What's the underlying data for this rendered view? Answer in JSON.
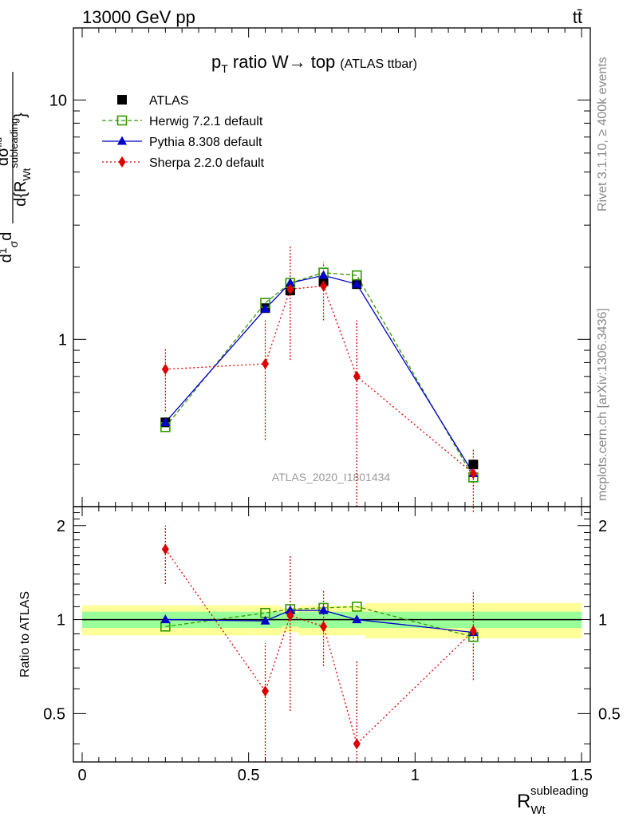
{
  "header": {
    "energy_label": "13000 GeV pp",
    "process_label": "tt̄"
  },
  "side_labels": {
    "rivet": "Rivet 3.1.10, ≥ 400k events",
    "mcplots": "mcplots.cern.ch [arXiv:1306.3436]"
  },
  "chart_data": {
    "type": "line",
    "title_main": "p",
    "title_sub": "T",
    "title_rest": " ratio W→ top",
    "title_tag": "(ATLAS ttbar)",
    "watermark": "ATLAS_2020_I1801434",
    "ylabel_main": "d¹σ / d{R_Wt^subleading} · 1/σ",
    "ylabel_ratio": "Ratio to ATLAS",
    "xlabel": "R",
    "xlabel_sup": "subleading",
    "xlabel_sub": "Wt",
    "xlim": [
      0,
      1.5
    ],
    "ylim_main": [
      0.2,
      20
    ],
    "yscale_main": "log",
    "ylim_ratio": [
      0.35,
      2.3
    ],
    "yscale_ratio": "log",
    "x_ticks": [
      "0",
      "0.5",
      "1",
      "1.5"
    ],
    "y_ticks_main": [
      "1",
      "10"
    ],
    "y_ticks_ratio": [
      "0.5",
      "1",
      "2"
    ],
    "bins": [
      {
        "lo": 0.0,
        "hi": 0.5
      },
      {
        "lo": 0.5,
        "hi": 0.6
      },
      {
        "lo": 0.6,
        "hi": 0.65
      },
      {
        "lo": 0.65,
        "hi": 0.8
      },
      {
        "lo": 0.8,
        "hi": 0.85
      },
      {
        "lo": 0.85,
        "hi": 1.5
      }
    ],
    "x": [
      0.25,
      0.55,
      0.625,
      0.725,
      0.825,
      1.175
    ],
    "data": {
      "name": "ATLAS",
      "values": [
        0.45,
        1.35,
        1.6,
        1.75,
        1.7,
        0.3
      ],
      "band_inner": [
        0.06,
        0.06,
        0.05,
        0.06,
        0.06,
        0.06
      ],
      "band_outer": [
        0.11,
        0.11,
        0.09,
        0.11,
        0.11,
        0.13
      ]
    },
    "series": [
      {
        "name": "Herwig 7.2.1 default",
        "color": "#339900",
        "marker": "open-square",
        "line": "dashed",
        "values": [
          0.43,
          1.42,
          1.72,
          1.9,
          1.85,
          0.265
        ],
        "ratio": [
          0.95,
          1.05,
          1.08,
          1.09,
          1.1,
          0.88
        ]
      },
      {
        "name": "Pythia 8.308 default",
        "color": "#0000cc",
        "marker": "triangle",
        "line": "solid",
        "values": [
          0.45,
          1.34,
          1.72,
          1.85,
          1.7,
          0.275
        ],
        "ratio": [
          1.0,
          0.99,
          1.07,
          1.07,
          1.0,
          0.91
        ]
      },
      {
        "name": "Sherpa 2.2.0 default",
        "color": "#dd0000",
        "marker": "diamond",
        "line": "dotted",
        "values": [
          0.75,
          0.79,
          1.62,
          1.67,
          0.7,
          0.275
        ],
        "errors": [
          [
            0.5,
            0.92
          ],
          [
            0.38,
            1.2
          ],
          [
            0.82,
            2.45
          ],
          [
            1.2,
            2.1
          ],
          [
            0.2,
            1.2
          ],
          [
            0.19,
            0.35
          ]
        ],
        "ratio": [
          1.68,
          0.59,
          1.03,
          0.95,
          0.4,
          0.92
        ],
        "ratio_errors": [
          [
            1.3,
            2.0
          ],
          [
            0.35,
            0.84
          ],
          [
            0.51,
            1.6
          ],
          [
            0.71,
            1.25
          ],
          [
            0.35,
            0.74
          ],
          [
            0.64,
            1.24
          ]
        ]
      }
    ],
    "legend_placement": "top-left"
  },
  "colors": {
    "band_outer": "#ffff99",
    "band_inner": "#99ff99",
    "axis": "#000000",
    "watermark": "#999999"
  }
}
